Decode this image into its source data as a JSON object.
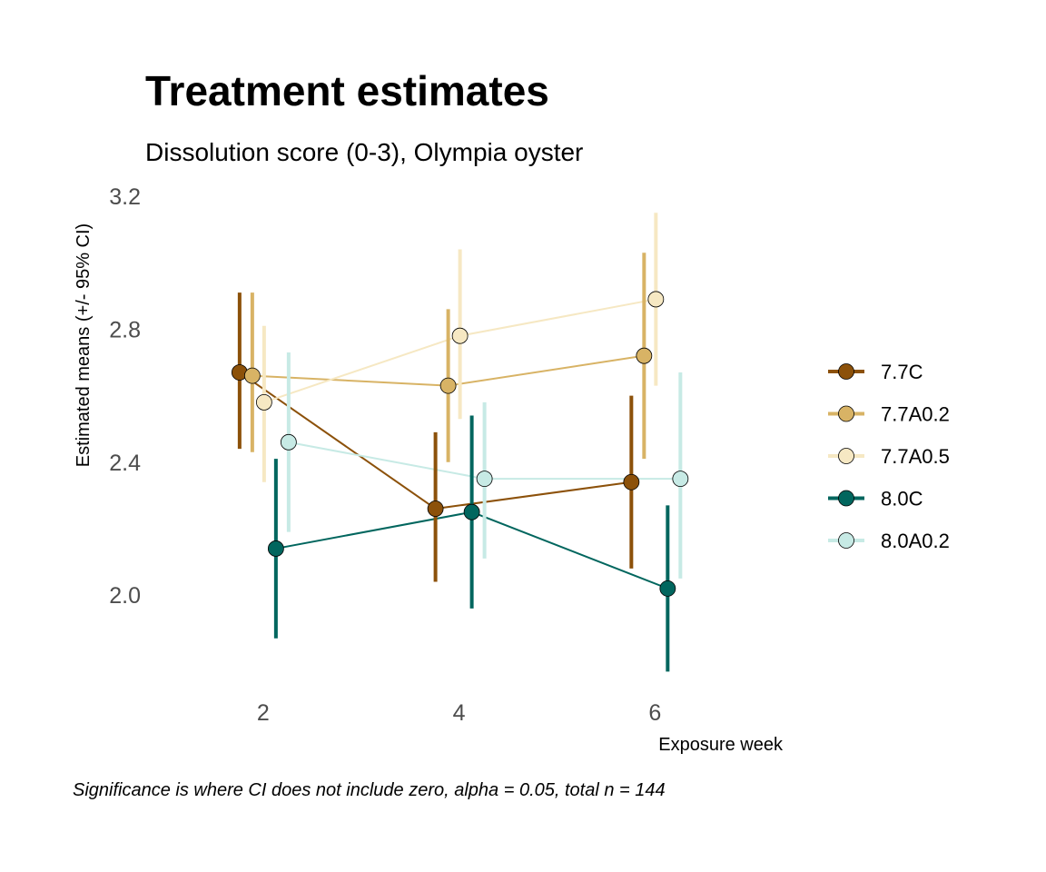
{
  "chart_data": {
    "type": "line",
    "title": "Treatment estimates",
    "subtitle": "Dissolution score (0-3), Olympia oyster",
    "xlabel": "Exposure week",
    "ylabel": "Estimated means (+/- 95% CI)",
    "caption": "Significance is where CI does not include zero, alpha = 0.05, total n = 144",
    "x": [
      2,
      4,
      6
    ],
    "x_tick_labels": [
      "2",
      "4",
      "6"
    ],
    "y_ticks": [
      2.0,
      2.4,
      2.8,
      3.2
    ],
    "y_tick_labels": [
      "2.0",
      "2.4",
      "2.8",
      "3.2"
    ],
    "xlim": [
      1,
      7.1
    ],
    "ylim": [
      1.7,
      3.23
    ],
    "grid": false,
    "legend_position": "right",
    "series": [
      {
        "name": "7.7C",
        "color": "#8c510a",
        "values": [
          2.67,
          2.26,
          2.34
        ],
        "lower": [
          2.44,
          2.04,
          2.08
        ],
        "upper": [
          2.91,
          2.49,
          2.6
        ]
      },
      {
        "name": "7.7A0.2",
        "color": "#d8b365",
        "values": [
          2.66,
          2.63,
          2.72
        ],
        "lower": [
          2.43,
          2.4,
          2.41
        ],
        "upper": [
          2.91,
          2.86,
          3.03
        ]
      },
      {
        "name": "7.7A0.5",
        "color": "#f6e8c3",
        "values": [
          2.58,
          2.78,
          2.89
        ],
        "lower": [
          2.34,
          2.53,
          2.63
        ],
        "upper": [
          2.81,
          3.04,
          3.15
        ]
      },
      {
        "name": "8.0C",
        "color": "#01665e",
        "values": [
          2.14,
          2.25,
          2.02
        ],
        "lower": [
          1.87,
          1.96,
          1.77
        ],
        "upper": [
          2.41,
          2.54,
          2.27
        ]
      },
      {
        "name": "8.0A0.2",
        "color": "#c7eae5",
        "values": [
          2.46,
          2.35,
          2.35
        ],
        "lower": [
          2.19,
          2.11,
          2.05
        ],
        "upper": [
          2.73,
          2.58,
          2.67
        ]
      }
    ]
  }
}
